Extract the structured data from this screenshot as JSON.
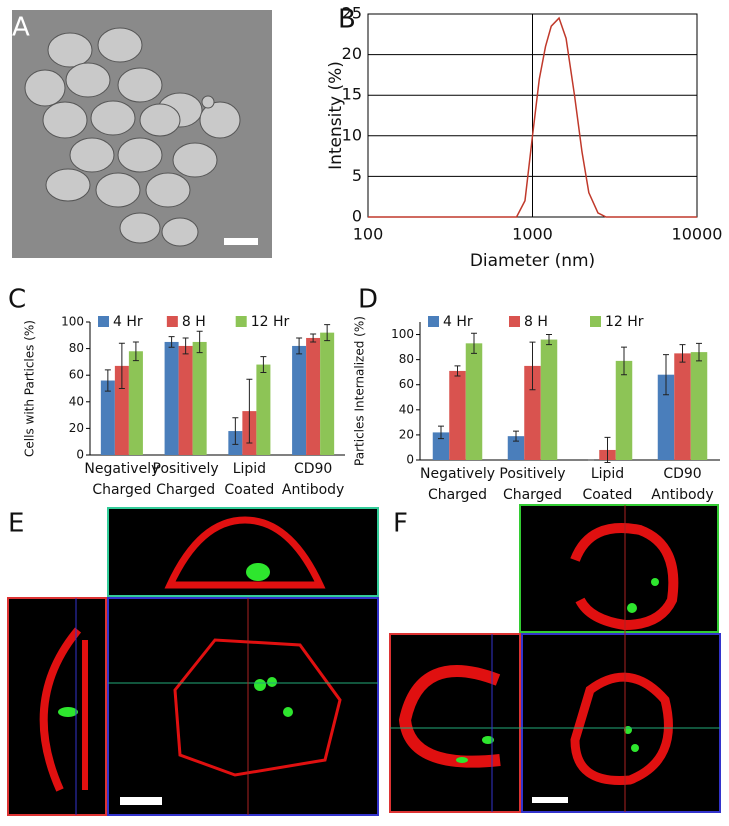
{
  "image_panels": [
    "A",
    "E",
    "F"
  ],
  "chart_data": [
    {
      "panel": "B",
      "type": "line",
      "xlabel": "Diameter (nm)",
      "ylabel": "Intensity (%)",
      "log_x": true,
      "grid": true,
      "xlim": [
        100,
        10000
      ],
      "ylim": [
        0,
        25
      ],
      "xticks": [
        100,
        1000,
        10000
      ],
      "yticks": [
        0,
        5,
        10,
        15,
        20,
        25
      ],
      "x": [
        100,
        800,
        900,
        1000,
        1100,
        1200,
        1300,
        1450,
        1600,
        1800,
        2000,
        2200,
        2500,
        2800,
        10000
      ],
      "series": [
        {
          "color": "#c0392b",
          "values": [
            0,
            0,
            2,
            10,
            17,
            21,
            23.5,
            24.5,
            22,
            15,
            8,
            3,
            0.5,
            0,
            0
          ]
        }
      ]
    },
    {
      "panel": "C",
      "type": "bar",
      "ylabel": "Cells with Particles (%)",
      "legend": "top",
      "categories": [
        "Negatively Charged",
        "Positively Charged",
        "Lipid Coated",
        "CD90 Antibody"
      ],
      "ylim": [
        0,
        100
      ],
      "yticks": [
        0,
        20,
        40,
        60,
        80,
        100
      ],
      "series": [
        {
          "name": "4 Hr",
          "color": "#4a7ebb",
          "values": [
            56,
            85,
            18,
            82
          ],
          "errors": [
            8,
            4,
            10,
            6
          ]
        },
        {
          "name": "8 H",
          "color": "#d9534f",
          "values": [
            67,
            82,
            33,
            88
          ],
          "errors": [
            17,
            6,
            24,
            3
          ]
        },
        {
          "name": "12 Hr",
          "color": "#8dc456",
          "values": [
            78,
            85,
            68,
            92
          ],
          "errors": [
            7,
            8,
            6,
            6
          ]
        }
      ]
    },
    {
      "panel": "D",
      "type": "bar",
      "ylabel": "Particles Internalized (%)",
      "legend": "top",
      "categories": [
        "Negatively Charged",
        "Positively Charged",
        "Lipid Coated",
        "CD90 Antibody"
      ],
      "ylim": [
        0,
        110
      ],
      "yticks": [
        0,
        20,
        40,
        60,
        80,
        100
      ],
      "series": [
        {
          "name": "4 Hr",
          "color": "#4a7ebb",
          "values": [
            22,
            19,
            0,
            68
          ],
          "errors": [
            5,
            4,
            0,
            16
          ]
        },
        {
          "name": "8 H",
          "color": "#d9534f",
          "values": [
            71,
            75,
            8,
            85
          ],
          "errors": [
            4,
            19,
            10,
            7
          ]
        },
        {
          "name": "12 Hr",
          "color": "#8dc456",
          "values": [
            93,
            96,
            79,
            86
          ],
          "errors": [
            8,
            4,
            11,
            7
          ]
        }
      ]
    }
  ]
}
